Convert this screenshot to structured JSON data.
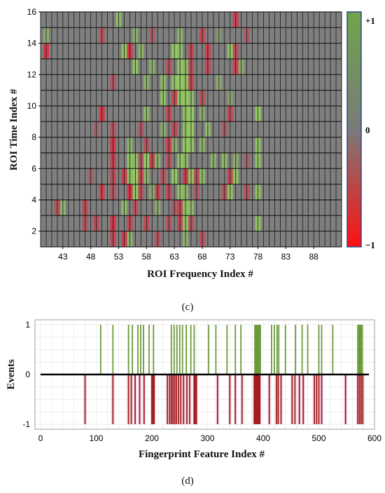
{
  "chart_data": [
    {
      "type": "heatmap",
      "caption": "(c)",
      "xlabel": "ROI Frequency Index #",
      "ylabel": "ROI Time Index #",
      "xlim": [
        39,
        93
      ],
      "ylim": [
        1,
        16
      ],
      "x_ticks": [
        "43",
        "48",
        "53",
        "58",
        "63",
        "68",
        "73",
        "78",
        "83",
        "88"
      ],
      "x_tick_values": [
        43,
        48,
        53,
        58,
        63,
        68,
        73,
        78,
        83,
        88
      ],
      "y_ticks": [
        "2",
        "4",
        "6",
        "8",
        "10",
        "12",
        "14",
        "16"
      ],
      "y_tick_values": [
        2,
        4,
        6,
        8,
        10,
        12,
        14,
        16
      ],
      "colorbar": {
        "max_label": "+1",
        "mid_label": "0",
        "min_label": "−1",
        "range": [
          -1,
          1
        ]
      },
      "background_value": 0,
      "cells": [
        [
          53,
          15.5,
          0.7
        ],
        [
          74,
          15.5,
          -0.7
        ],
        [
          50,
          14.5,
          -0.5
        ],
        [
          56,
          14.5,
          0.5
        ],
        [
          59,
          14.5,
          -0.4
        ],
        [
          64,
          14.5,
          0.6
        ],
        [
          68,
          14.5,
          -0.6
        ],
        [
          71,
          14.5,
          0.3
        ],
        [
          76,
          14.5,
          -0.4
        ],
        [
          40,
          14.5,
          0.5
        ],
        [
          54,
          13.5,
          0.8
        ],
        [
          55,
          13.5,
          -0.8
        ],
        [
          57,
          13.5,
          0.6
        ],
        [
          63,
          13.5,
          0.9
        ],
        [
          64,
          13.5,
          0.7
        ],
        [
          66,
          13.5,
          -0.6
        ],
        [
          69,
          13.5,
          -0.7
        ],
        [
          73,
          13.5,
          0.8
        ],
        [
          74,
          13.5,
          -0.5
        ],
        [
          40,
          13.5,
          -0.8
        ],
        [
          56,
          12.5,
          0.8
        ],
        [
          59,
          12.5,
          0.6
        ],
        [
          62,
          12.5,
          -0.5
        ],
        [
          64,
          12.5,
          0.8
        ],
        [
          65,
          12.5,
          0.7
        ],
        [
          66,
          12.5,
          -0.5
        ],
        [
          69,
          12.5,
          -0.6
        ],
        [
          74,
          12.5,
          -0.7
        ],
        [
          75,
          12.5,
          0.5
        ],
        [
          52,
          11.5,
          -0.5
        ],
        [
          58,
          11.5,
          0.6
        ],
        [
          61,
          11.5,
          0.7
        ],
        [
          63,
          11.5,
          0.8
        ],
        [
          64,
          11.5,
          0.9
        ],
        [
          65,
          11.5,
          0.8
        ],
        [
          66,
          11.5,
          -0.6
        ],
        [
          71,
          11.5,
          0.5
        ],
        [
          61,
          10.5,
          0.8
        ],
        [
          63,
          10.5,
          -0.6
        ],
        [
          64,
          10.5,
          0.8
        ],
        [
          65,
          10.5,
          0.9
        ],
        [
          66,
          10.5,
          0.7
        ],
        [
          68,
          10.5,
          -0.5
        ],
        [
          73,
          10.5,
          0.4
        ],
        [
          50,
          9.5,
          -0.8
        ],
        [
          58,
          9.5,
          0.7
        ],
        [
          62,
          9.5,
          -0.6
        ],
        [
          65,
          9.5,
          0.8
        ],
        [
          66,
          9.5,
          0.9
        ],
        [
          68,
          9.5,
          0.5
        ],
        [
          73,
          9.5,
          -0.6
        ],
        [
          78,
          9.5,
          0.9
        ],
        [
          49,
          8.5,
          -0.3
        ],
        [
          52,
          8.5,
          -0.5
        ],
        [
          57,
          8.5,
          -0.4
        ],
        [
          61,
          8.5,
          0.5
        ],
        [
          63,
          8.5,
          -0.6
        ],
        [
          65,
          8.5,
          0.8
        ],
        [
          66,
          8.5,
          0.9
        ],
        [
          69,
          8.5,
          0.7
        ],
        [
          72,
          8.5,
          -0.4
        ],
        [
          52,
          7.5,
          -0.8
        ],
        [
          55,
          7.5,
          0.6
        ],
        [
          58,
          7.5,
          -0.5
        ],
        [
          62,
          7.5,
          -0.7
        ],
        [
          63,
          7.5,
          0.5
        ],
        [
          65,
          7.5,
          0.9
        ],
        [
          66,
          7.5,
          0.8
        ],
        [
          68,
          7.5,
          0.6
        ],
        [
          78,
          7.5,
          0.8
        ],
        [
          52,
          6.5,
          -0.7
        ],
        [
          55,
          6.5,
          0.8
        ],
        [
          56,
          6.5,
          0.7
        ],
        [
          57,
          6.5,
          -0.4
        ],
        [
          58,
          6.5,
          0.9
        ],
        [
          59,
          6.5,
          -0.6
        ],
        [
          60,
          6.5,
          0.6
        ],
        [
          62,
          6.5,
          -0.5
        ],
        [
          64,
          6.5,
          0.8
        ],
        [
          65,
          6.5,
          0.7
        ],
        [
          70,
          6.5,
          0.6
        ],
        [
          72,
          6.5,
          0.7
        ],
        [
          74,
          6.5,
          0.5
        ],
        [
          76,
          6.5,
          -0.3
        ],
        [
          78,
          6.5,
          0.8
        ],
        [
          48,
          5.5,
          -0.3
        ],
        [
          52,
          5.5,
          -0.6
        ],
        [
          54,
          5.5,
          -0.7
        ],
        [
          55,
          5.5,
          0.7
        ],
        [
          56,
          5.5,
          0.9
        ],
        [
          57,
          5.5,
          -0.6
        ],
        [
          58,
          5.5,
          0.6
        ],
        [
          61,
          5.5,
          -0.5
        ],
        [
          63,
          5.5,
          0.9
        ],
        [
          65,
          5.5,
          -0.7
        ],
        [
          66,
          5.5,
          0.8
        ],
        [
          67,
          5.5,
          -0.5
        ],
        [
          68,
          5.5,
          0.7
        ],
        [
          73,
          5.5,
          -0.6
        ],
        [
          74,
          5.5,
          0.8
        ],
        [
          50,
          4.5,
          -0.7
        ],
        [
          52,
          4.5,
          -0.5
        ],
        [
          55,
          4.5,
          -0.8
        ],
        [
          56,
          4.5,
          0.8
        ],
        [
          57,
          4.5,
          -0.5
        ],
        [
          59,
          4.5,
          0.5
        ],
        [
          60,
          4.5,
          -0.6
        ],
        [
          62,
          4.5,
          -0.6
        ],
        [
          64,
          4.5,
          0.8
        ],
        [
          65,
          4.5,
          0.6
        ],
        [
          67,
          4.5,
          -0.4
        ],
        [
          72,
          4.5,
          -0.5
        ],
        [
          73,
          4.5,
          0.8
        ],
        [
          76,
          4.5,
          -0.5
        ],
        [
          78,
          4.5,
          0.8
        ],
        [
          43,
          3.5,
          0.6
        ],
        [
          47,
          3.5,
          -0.6
        ],
        [
          54,
          3.5,
          0.7
        ],
        [
          56,
          3.5,
          -0.5
        ],
        [
          60,
          3.5,
          0.5
        ],
        [
          63,
          3.5,
          -0.4
        ],
        [
          64,
          3.5,
          -0.6
        ],
        [
          65,
          3.5,
          0.8
        ],
        [
          66,
          3.5,
          0.7
        ],
        [
          49,
          2.5,
          -0.6
        ],
        [
          52,
          2.5,
          -0.8
        ],
        [
          55,
          2.5,
          -0.6
        ],
        [
          58,
          2.5,
          -0.6
        ],
        [
          62,
          2.5,
          -0.5
        ],
        [
          64,
          2.5,
          -0.6
        ],
        [
          65,
          2.5,
          0.8
        ],
        [
          66,
          2.5,
          -0.5
        ],
        [
          78,
          2.5,
          0.8
        ],
        [
          42,
          3.5,
          -0.5
        ],
        [
          47,
          2.5,
          -0.5
        ],
        [
          52,
          1.5,
          -0.6
        ],
        [
          54,
          1.5,
          -0.7
        ],
        [
          55,
          1.5,
          0.6
        ],
        [
          60,
          1.5,
          -0.5
        ],
        [
          65,
          1.5,
          0.6
        ],
        [
          68,
          1.5,
          -0.5
        ]
      ]
    },
    {
      "type": "bar",
      "caption": "(d)",
      "xlabel": "Fingerprint Feature Index #",
      "ylabel": "Events",
      "xlim": [
        -10,
        600
      ],
      "ylim": [
        -1.1,
        1.1
      ],
      "x_ticks": [
        "0",
        "100",
        "200",
        "300",
        "400",
        "500",
        "600"
      ],
      "x_tick_values": [
        0,
        100,
        200,
        300,
        400,
        500,
        600
      ],
      "y_ticks": [
        "1",
        "0",
        "-1"
      ],
      "y_tick_values": [
        1,
        0,
        -1
      ],
      "grid": true,
      "colors": {
        "positive": "#6a9a3a",
        "negative": "#a01a1a",
        "band": "#f3dcea",
        "baseline": "#000000"
      },
      "positive_events": [
        108,
        130,
        158,
        165,
        175,
        180,
        185,
        195,
        203,
        235,
        240,
        245,
        250,
        255,
        262,
        270,
        276,
        302,
        315,
        335,
        350,
        360,
        385,
        387,
        389,
        391,
        393,
        395,
        415,
        420,
        425,
        428,
        440,
        458,
        470,
        480,
        500,
        505,
        525,
        570,
        572,
        574,
        576,
        578
      ],
      "negative_events": [
        80,
        130,
        158,
        163,
        170,
        178,
        186,
        200,
        202,
        204,
        228,
        232,
        235,
        238,
        241,
        244,
        248,
        252,
        257,
        263,
        268,
        276,
        278,
        280,
        318,
        340,
        350,
        362,
        384,
        386,
        388,
        390,
        392,
        394,
        411,
        424,
        427,
        432,
        452,
        457,
        465,
        472,
        492,
        496,
        500,
        505,
        548,
        570,
        573,
        576,
        579
      ]
    }
  ]
}
